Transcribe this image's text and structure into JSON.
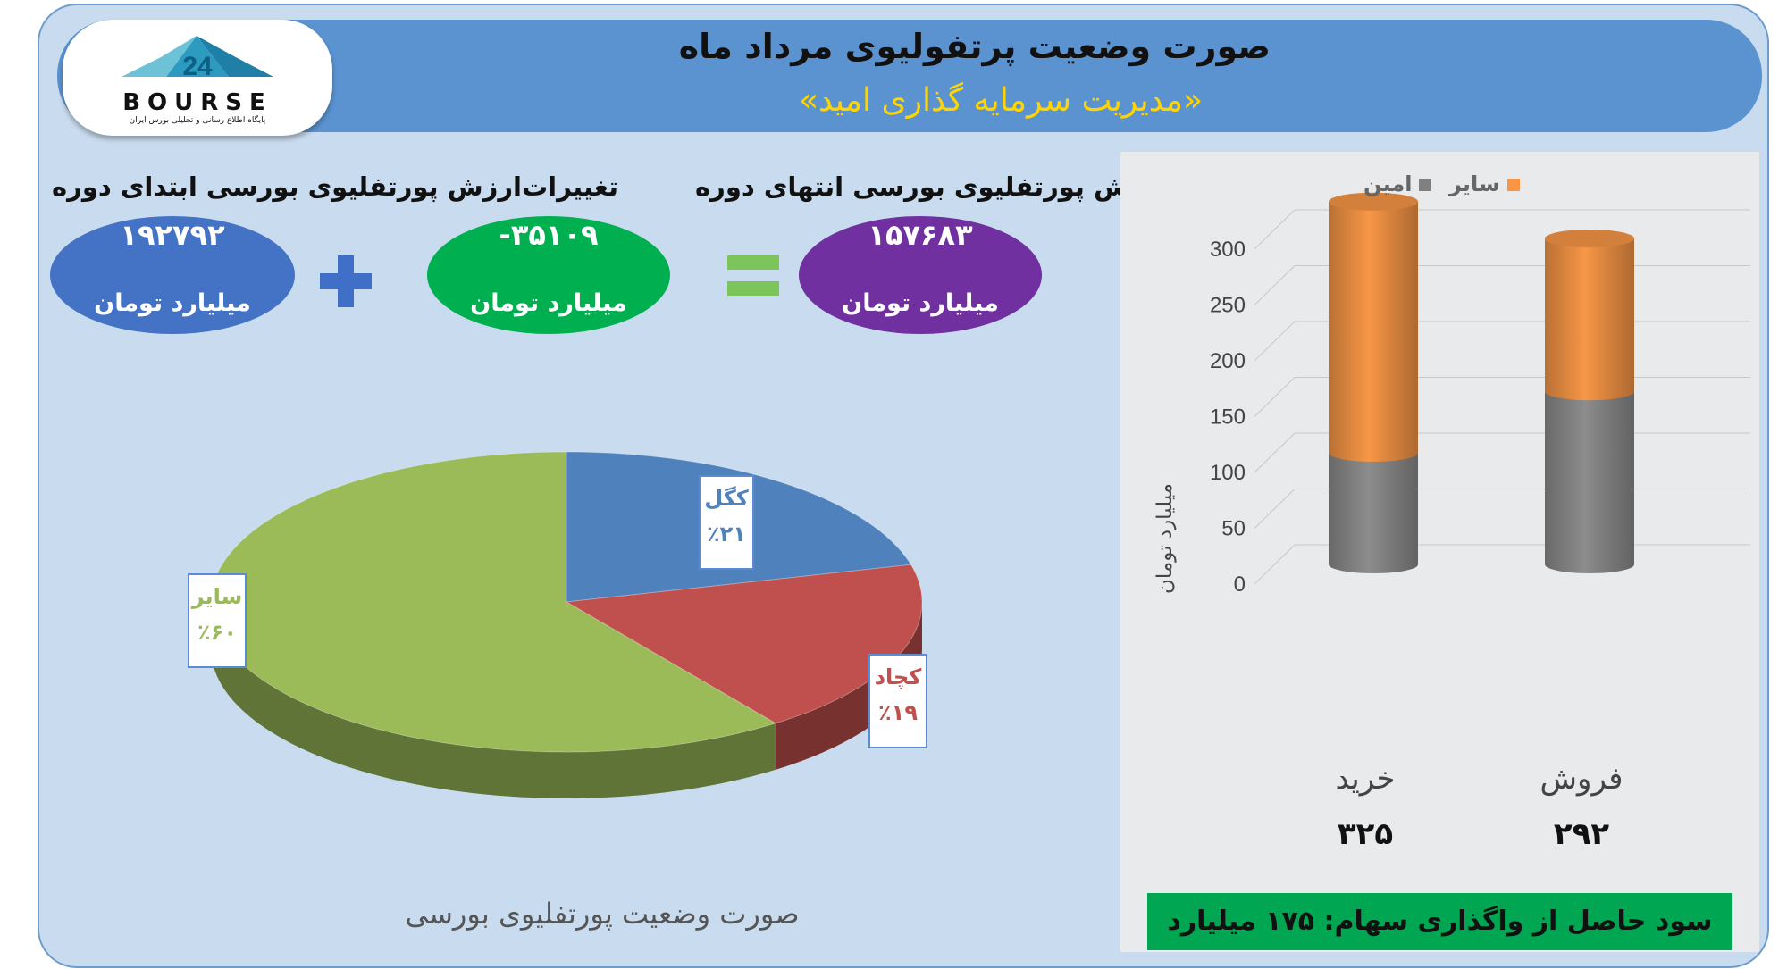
{
  "header": {
    "title": "صورت وضعیت پرتفولیوی مرداد ماه",
    "subtitle": "«مدیریت سرمایه گذاری امید»"
  },
  "logo": {
    "text": "BOURSE",
    "number": "24",
    "tagline": "پایگاه اطلاع رسانی و تحلیلی بورس ایران"
  },
  "summary": {
    "start": {
      "label": "ارزش پورتفلیوی بورسی ابتدای دوره",
      "value": "۱۹۲۷۹۲",
      "unit": "میلیارد تومان"
    },
    "change": {
      "label": "تغییرات",
      "value": "-۳۵۱۰۹",
      "unit": "میلیارد تومان"
    },
    "end": {
      "label": "ارزش پورتفلیوی بورسی انتهای دوره",
      "value": "۱۵۷۶۸۳",
      "unit": "میلیارد تومان"
    }
  },
  "colors": {
    "blue": "#4f81bd",
    "red": "#c0504d",
    "green": "#9bbb59",
    "orange": "#f79646",
    "gray": "#8c8c8c",
    "purple": "#7030a0",
    "profit_bg": "#00a651"
  },
  "chart_data": [
    {
      "type": "pie",
      "title": "صورت وضعیت پورتفلیوی بورسی",
      "slices": [
        {
          "label": "کگل",
          "value": 21,
          "display": "٪۲۱",
          "color": "#4f81bd"
        },
        {
          "label": "کچاد",
          "value": 19,
          "display": "٪۱۹",
          "color": "#c0504d"
        },
        {
          "label": "سایر",
          "value": 60,
          "display": "٪۶۰",
          "color": "#9bbb59"
        }
      ]
    },
    {
      "type": "bar",
      "stacked": true,
      "ylabel": "میلیارد تومان",
      "ylim": [
        0,
        300
      ],
      "yticks": [
        0,
        50,
        100,
        150,
        200,
        250,
        300
      ],
      "categories": [
        "خرید",
        "فروش"
      ],
      "totals": [
        "۳۲۵",
        "۲۹۲"
      ],
      "series": [
        {
          "name": "امین",
          "values": [
            100,
            155
          ],
          "color": "#8c8c8c"
        },
        {
          "name": "سایر",
          "values": [
            225,
            137
          ],
          "color": "#f79646"
        }
      ],
      "legend": "top"
    }
  ],
  "footer": {
    "profit": "سود حاصل از واگذاری سهام: ۱۷۵ میلیارد تومان"
  }
}
